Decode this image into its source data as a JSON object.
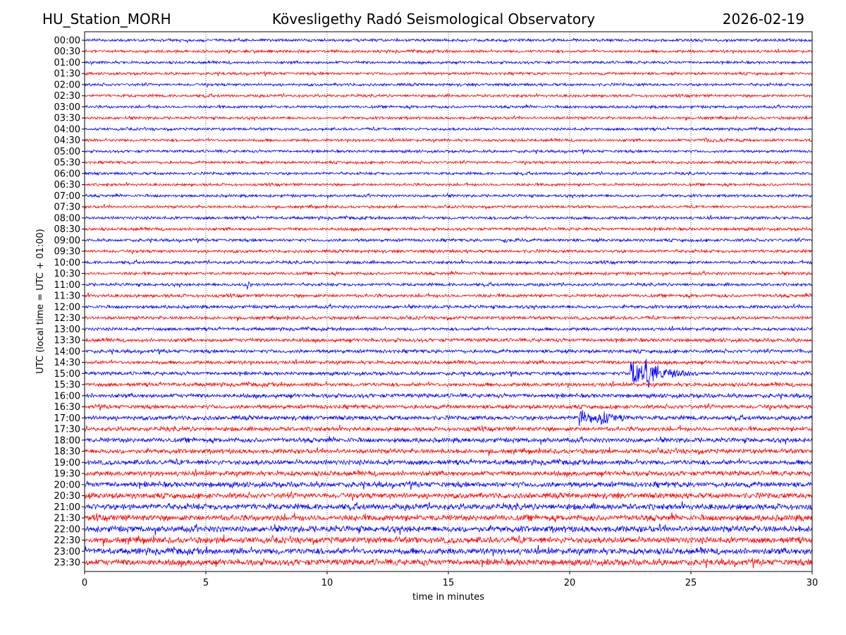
{
  "header": {
    "station": "HU_Station_MORH",
    "observatory": "Kövesligethy Radó Seismological Observatory",
    "date": "2026-02-19"
  },
  "chart_data": {
    "type": "line",
    "title": "Kövesligethy Radó Seismological Observatory",
    "xlabel": "time in minutes",
    "ylabel": "UTC (local time = UTC + 01:00)",
    "xlim": [
      0,
      30
    ],
    "xticks": [
      "0",
      "5",
      "10",
      "15",
      "20",
      "25",
      "30"
    ],
    "xtick_values": [
      0,
      5,
      10,
      15,
      20,
      25,
      30
    ],
    "grid": "vertical dotted at x ticks",
    "row_labels": [
      "00:00",
      "00:30",
      "01:00",
      "01:30",
      "02:00",
      "02:30",
      "03:00",
      "03:30",
      "04:00",
      "04:30",
      "05:00",
      "05:30",
      "06:00",
      "06:30",
      "07:00",
      "07:30",
      "08:00",
      "08:30",
      "09:00",
      "09:30",
      "10:00",
      "10:30",
      "11:00",
      "11:30",
      "12:00",
      "12:30",
      "13:00",
      "13:30",
      "14:00",
      "14:30",
      "15:00",
      "15:30",
      "16:00",
      "16:30",
      "17:00",
      "17:30",
      "18:00",
      "18:30",
      "19:00",
      "19:30",
      "20:00",
      "20:30",
      "21:00",
      "21:30",
      "22:00",
      "22:30",
      "23:00",
      "23:30"
    ],
    "series_colors": [
      "#0000ff",
      "#ff0000"
    ],
    "noise_level": [
      1,
      1,
      1,
      1,
      1,
      1,
      1,
      1,
      1,
      1,
      1,
      1,
      1,
      1,
      1,
      1,
      1.1,
      1.1,
      1.1,
      1.1,
      1.1,
      1.1,
      1.1,
      1.2,
      1.2,
      1.2,
      1.2,
      1.3,
      1.3,
      1.3,
      1.3,
      1.4,
      1.5,
      1.5,
      1.6,
      1.6,
      1.7,
      1.7,
      1.8,
      1.8,
      2,
      2,
      2.2,
      2.2,
      2.3,
      2.3,
      2.3,
      2.3
    ],
    "events": [
      {
        "row": "04:30",
        "start_min": 25.5,
        "end_min": 28.5,
        "amplitude": 2
      },
      {
        "row": "09:00",
        "start_min": 17.3,
        "end_min": 18.2,
        "amplitude": 2
      },
      {
        "row": "11:00",
        "start_min": 6.7,
        "end_min": 7.0,
        "amplitude": 6
      },
      {
        "row": "14:00",
        "start_min": 29.4,
        "end_min": 30,
        "amplitude": 3
      },
      {
        "row": "15:00",
        "start_min": 22.5,
        "end_min": 25.5,
        "amplitude": 14
      },
      {
        "row": "15:00",
        "start_min": 23.1,
        "end_min": 25.0,
        "amplitude": 16
      },
      {
        "row": "17:00",
        "start_min": 20.4,
        "end_min": 23.0,
        "amplitude": 9
      },
      {
        "row": "17:00",
        "start_min": 21.2,
        "end_min": 22.5,
        "amplitude": 9
      }
    ]
  }
}
